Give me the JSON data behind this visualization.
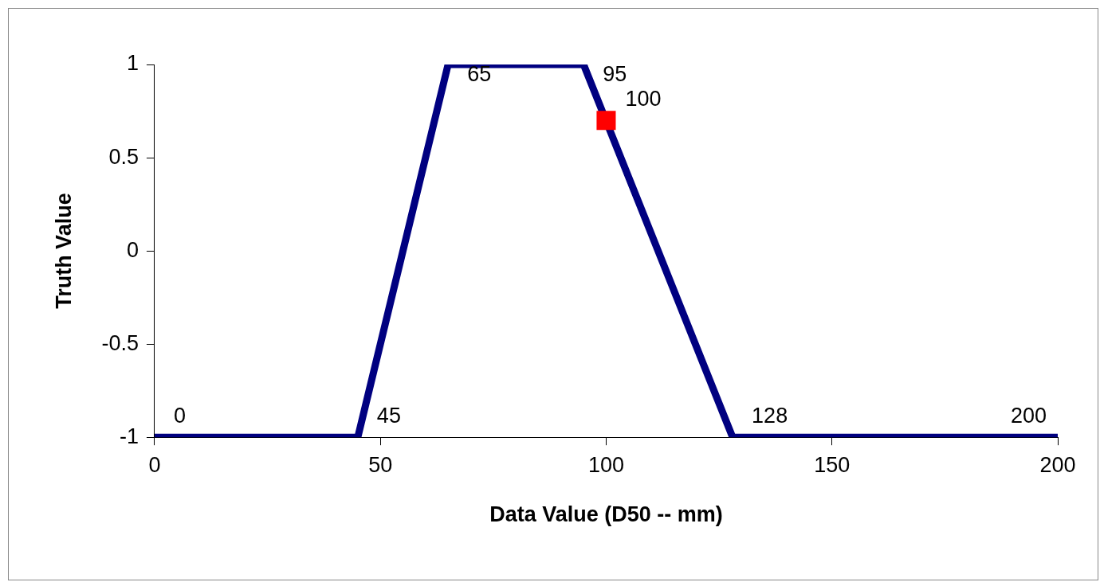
{
  "chart_data": {
    "type": "line",
    "xlabel": "Data Value (D50 -- mm)",
    "ylabel": "Truth Value",
    "xlim": [
      0,
      200
    ],
    "xticks": [
      0,
      50,
      100,
      150,
      200
    ],
    "ylim": [
      -1,
      1
    ],
    "yticks": [
      -1,
      -0.5,
      0,
      0.5,
      1
    ],
    "grid": false,
    "legend": false,
    "series": [
      {
        "type": "line",
        "color": "#000080",
        "x": [
          0,
          45,
          65,
          95,
          128,
          200
        ],
        "values": [
          -1,
          -1,
          1,
          1,
          -1,
          -1
        ],
        "marker": "none"
      },
      {
        "type": "scatter",
        "color": "#ff0000",
        "x": [
          100
        ],
        "values": [
          0.7
        ],
        "marker": "square"
      }
    ],
    "annotations": [
      {
        "text": "0",
        "x": 0,
        "y": -1
      },
      {
        "text": "45",
        "x": 45,
        "y": -1
      },
      {
        "text": "65",
        "x": 65,
        "y": 1
      },
      {
        "text": "95",
        "x": 95,
        "y": 1
      },
      {
        "text": "100",
        "x": 100,
        "y": 0.7
      },
      {
        "text": "128",
        "x": 128,
        "y": -1
      },
      {
        "text": "200",
        "x": 200,
        "y": -1
      }
    ]
  }
}
